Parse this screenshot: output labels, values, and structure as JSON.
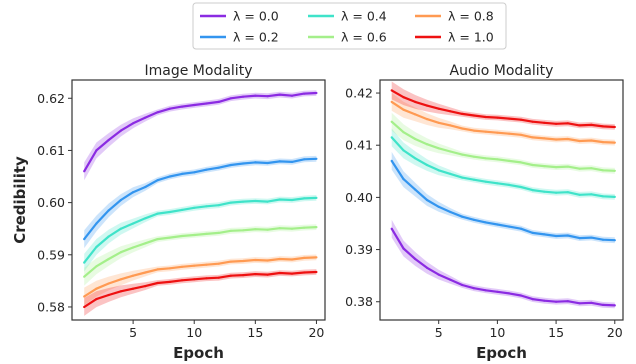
{
  "chart_data": [
    {
      "type": "line",
      "title": "Image Modality",
      "xlabel": "Epoch",
      "ylabel": "Credibility",
      "xlim": [
        0,
        20.7
      ],
      "ylim": [
        0.5775,
        0.6235
      ],
      "xticks": [
        5,
        10,
        15,
        20
      ],
      "yticks": [
        0.58,
        0.59,
        0.6,
        0.61,
        0.62
      ],
      "ytick_labels": [
        "0.58",
        "0.59",
        "0.60",
        "0.61",
        "0.62"
      ],
      "x": [
        1,
        2,
        3,
        4,
        5,
        6,
        7,
        8,
        9,
        10,
        11,
        12,
        13,
        14,
        15,
        16,
        17,
        18,
        19,
        20
      ],
      "grid": false,
      "series": [
        {
          "name": "λ = 0.0",
          "color": "#8b2be2",
          "values": [
            0.606,
            0.61,
            0.612,
            0.6138,
            0.6152,
            0.6163,
            0.6173,
            0.618,
            0.6184,
            0.6187,
            0.619,
            0.6193,
            0.62,
            0.6203,
            0.6205,
            0.6204,
            0.6207,
            0.6205,
            0.6209,
            0.621
          ]
        },
        {
          "name": "λ = 0.2",
          "color": "#3395ef",
          "values": [
            0.593,
            0.596,
            0.5985,
            0.6005,
            0.602,
            0.603,
            0.6043,
            0.605,
            0.6055,
            0.6058,
            0.6063,
            0.6067,
            0.6072,
            0.6075,
            0.6077,
            0.6076,
            0.6079,
            0.6078,
            0.6083,
            0.6084
          ]
        },
        {
          "name": "λ = 0.4",
          "color": "#3fe3c9",
          "values": [
            0.5885,
            0.5915,
            0.5935,
            0.595,
            0.596,
            0.597,
            0.5979,
            0.5982,
            0.5986,
            0.599,
            0.5993,
            0.5995,
            0.6,
            0.6002,
            0.6003,
            0.6002,
            0.6006,
            0.6005,
            0.6008,
            0.6009
          ]
        },
        {
          "name": "λ = 0.6",
          "color": "#a4ef8a",
          "values": [
            0.5858,
            0.5878,
            0.5892,
            0.5905,
            0.5914,
            0.5922,
            0.593,
            0.5933,
            0.5936,
            0.5938,
            0.594,
            0.5942,
            0.5946,
            0.5947,
            0.5949,
            0.5948,
            0.5951,
            0.595,
            0.5952,
            0.5953
          ]
        },
        {
          "name": "λ = 0.8",
          "color": "#ff9a52",
          "values": [
            0.582,
            0.5835,
            0.5845,
            0.5853,
            0.586,
            0.5866,
            0.5872,
            0.5874,
            0.5877,
            0.5879,
            0.5881,
            0.5883,
            0.5887,
            0.5888,
            0.589,
            0.5889,
            0.5892,
            0.5891,
            0.5894,
            0.5895
          ]
        },
        {
          "name": "λ = 1.0",
          "color": "#ee1111",
          "values": [
            0.58,
            0.5815,
            0.5823,
            0.583,
            0.5835,
            0.584,
            0.5846,
            0.5848,
            0.5851,
            0.5853,
            0.5855,
            0.5856,
            0.586,
            0.5861,
            0.5863,
            0.5862,
            0.5865,
            0.5864,
            0.5866,
            0.5867
          ]
        }
      ]
    },
    {
      "type": "line",
      "title": "Audio Modality",
      "xlabel": "Epoch",
      "xlim": [
        0,
        20.7
      ],
      "ylim": [
        0.3765,
        0.4225
      ],
      "xticks": [
        5,
        10,
        15,
        20
      ],
      "yticks": [
        0.38,
        0.39,
        0.4,
        0.41,
        0.42
      ],
      "ytick_labels": [
        "0.38",
        "0.39",
        "0.40",
        "0.41",
        "0.42"
      ],
      "x": [
        1,
        2,
        3,
        4,
        5,
        6,
        7,
        8,
        9,
        10,
        11,
        12,
        13,
        14,
        15,
        16,
        17,
        18,
        19,
        20
      ],
      "grid": false,
      "series": [
        {
          "name": "λ = 0.0",
          "color": "#8b2be2",
          "values": [
            0.394,
            0.3902,
            0.3882,
            0.3865,
            0.3852,
            0.3842,
            0.3832,
            0.3826,
            0.3822,
            0.3819,
            0.3816,
            0.3812,
            0.3805,
            0.3802,
            0.38,
            0.3801,
            0.3797,
            0.3798,
            0.3794,
            0.3793
          ]
        },
        {
          "name": "λ = 0.2",
          "color": "#3395ef",
          "values": [
            0.407,
            0.4035,
            0.4015,
            0.3995,
            0.3982,
            0.3972,
            0.3963,
            0.3957,
            0.3952,
            0.3948,
            0.3944,
            0.394,
            0.3932,
            0.3929,
            0.3926,
            0.3927,
            0.3922,
            0.3923,
            0.3919,
            0.3918
          ]
        },
        {
          "name": "λ = 0.4",
          "color": "#3fe3c9",
          "values": [
            0.4115,
            0.409,
            0.4075,
            0.4062,
            0.4052,
            0.4045,
            0.4038,
            0.4034,
            0.403,
            0.4027,
            0.4024,
            0.402,
            0.4014,
            0.4011,
            0.4009,
            0.401,
            0.4005,
            0.4006,
            0.4002,
            0.4001
          ]
        },
        {
          "name": "λ = 0.6",
          "color": "#a4ef8a",
          "values": [
            0.4145,
            0.4125,
            0.4112,
            0.4102,
            0.4094,
            0.4088,
            0.4082,
            0.4078,
            0.4075,
            0.4073,
            0.407,
            0.4067,
            0.4062,
            0.406,
            0.4058,
            0.4059,
            0.4055,
            0.4056,
            0.4052,
            0.4051
          ]
        },
        {
          "name": "λ = 0.8",
          "color": "#ff9a52",
          "values": [
            0.4183,
            0.4168,
            0.4159,
            0.415,
            0.4143,
            0.4138,
            0.4132,
            0.4128,
            0.4126,
            0.4124,
            0.4122,
            0.412,
            0.4115,
            0.4113,
            0.4111,
            0.4112,
            0.4108,
            0.4109,
            0.4106,
            0.4105
          ]
        },
        {
          "name": "λ = 1.0",
          "color": "#ee1111",
          "values": [
            0.4205,
            0.4192,
            0.4183,
            0.4176,
            0.417,
            0.4165,
            0.416,
            0.4157,
            0.4154,
            0.4153,
            0.4151,
            0.4149,
            0.4145,
            0.4143,
            0.4141,
            0.4142,
            0.4138,
            0.4139,
            0.4136,
            0.4135
          ]
        }
      ]
    }
  ],
  "legend": {
    "placement": "top-center",
    "columns": 3
  }
}
